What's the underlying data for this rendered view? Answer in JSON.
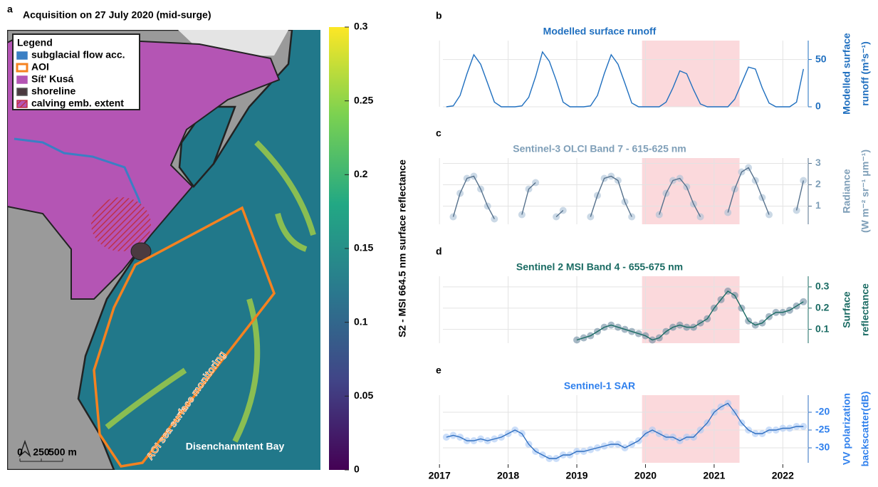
{
  "chart_data": [
    {
      "type": "map",
      "label": "a",
      "title": "Acquisition on 27 July 2020 (mid-surge)",
      "legend": {
        "title": "Legend",
        "items": [
          {
            "name": "subglacial flow acc.",
            "color": "#3a7fc4"
          },
          {
            "name": "AOI",
            "color": "#f58220"
          },
          {
            "name": "Sít' Kusá",
            "color": "#b455b4"
          },
          {
            "name": "shoreline",
            "color": "#555555"
          },
          {
            "name": "calving emb. extent",
            "color": "#c0304a"
          }
        ]
      },
      "annotations": [
        "AOI sea surface monitoring",
        "Disenchanmtent Bay"
      ],
      "scale_bar": [
        0,
        250,
        {
          "value": 500,
          "label": "500 m"
        }
      ],
      "colorbar": {
        "label": "S2 - MSI 664.5 nm surface reflectance",
        "lim": [
          0,
          0.3
        ],
        "ticks": [
          0,
          0.05,
          0.1,
          0.15,
          0.2,
          0.25,
          0.3
        ]
      }
    },
    {
      "type": "line",
      "label": "b",
      "title": "Modelled surface runoff",
      "title_color": "#1f6fbf",
      "color": "#1f6fbf",
      "ylabel": [
        "Modelled surface",
        "runoff (m³s⁻¹)"
      ],
      "x": [
        2017.1,
        2017.2,
        2017.3,
        2017.4,
        2017.5,
        2017.6,
        2017.7,
        2017.8,
        2017.9,
        2018.0,
        2018.1,
        2018.2,
        2018.3,
        2018.4,
        2018.5,
        2018.6,
        2018.7,
        2018.8,
        2018.9,
        2019.0,
        2019.1,
        2019.2,
        2019.3,
        2019.4,
        2019.5,
        2019.6,
        2019.7,
        2019.8,
        2019.9,
        2020.0,
        2020.1,
        2020.2,
        2020.3,
        2020.4,
        2020.5,
        2020.6,
        2020.7,
        2020.8,
        2020.9,
        2021.0,
        2021.1,
        2021.2,
        2021.3,
        2021.4,
        2021.5,
        2021.6,
        2021.7,
        2021.8,
        2021.9,
        2022.0,
        2022.1,
        2022.2,
        2022.3
      ],
      "values": [
        0,
        1,
        12,
        35,
        55,
        45,
        25,
        5,
        0,
        0,
        0,
        1,
        10,
        32,
        58,
        48,
        28,
        5,
        0,
        0,
        0,
        1,
        12,
        35,
        55,
        45,
        25,
        4,
        0,
        0,
        0,
        0,
        5,
        20,
        38,
        35,
        18,
        3,
        0,
        0,
        0,
        0,
        8,
        25,
        42,
        40,
        20,
        4,
        0,
        0,
        0,
        5,
        40
      ],
      "xlim": [
        2017.05,
        2022.37
      ],
      "xticks": [
        2017,
        2018,
        2019,
        2020,
        2021,
        2022
      ],
      "ylim": [
        0,
        70
      ],
      "yticks": [
        0,
        50
      ],
      "grid": true,
      "shaded_span": [
        2019.95,
        2021.37
      ],
      "shade_color": "#fbd9dc"
    },
    {
      "type": "scatter_line",
      "label": "c",
      "title": "Sentinel-3 OLCI Band 7 - 615-625 nm",
      "title_color": "#7f9fb8",
      "color": "#56718c",
      "marker_color": "#a9c0d6",
      "ylabel": [
        "Radiance",
        "(W m⁻² sr⁻¹ μm⁻¹)"
      ],
      "x": [
        2017.1,
        2017.2,
        2017.3,
        2017.4,
        2017.5,
        2017.6,
        2017.7,
        2017.8,
        2017.9,
        2018.0,
        2018.1,
        2018.2,
        2018.3,
        2018.4,
        2018.5,
        2018.6,
        2018.7,
        2018.8,
        2018.9,
        2019.0,
        2019.1,
        2019.2,
        2019.3,
        2019.4,
        2019.5,
        2019.6,
        2019.7,
        2019.8,
        2019.9,
        2020.0,
        2020.1,
        2020.2,
        2020.3,
        2020.4,
        2020.5,
        2020.6,
        2020.7,
        2020.8,
        2020.9,
        2021.0,
        2021.1,
        2021.2,
        2021.3,
        2021.4,
        2021.5,
        2021.6,
        2021.7,
        2021.8,
        2021.9,
        2022.0,
        2022.1,
        2022.2,
        2022.3
      ],
      "values": [
        null,
        0.5,
        1.6,
        2.3,
        2.4,
        1.8,
        1.0,
        0.4,
        null,
        null,
        null,
        0.6,
        1.8,
        2.1,
        null,
        null,
        0.5,
        0.8,
        null,
        null,
        null,
        0.5,
        1.5,
        2.3,
        2.4,
        2.2,
        1.2,
        0.5,
        null,
        null,
        null,
        0.6,
        1.6,
        2.2,
        2.3,
        1.9,
        1.1,
        0.5,
        null,
        null,
        null,
        0.7,
        1.8,
        2.6,
        2.8,
        2.2,
        1.4,
        0.6,
        null,
        null,
        null,
        0.8,
        2.2
      ],
      "xlim": [
        2017.05,
        2022.37
      ],
      "xticks": [
        2017,
        2018,
        2019,
        2020,
        2021,
        2022
      ],
      "ylim": [
        0.15,
        3.25
      ],
      "yticks": [
        1,
        2,
        3
      ],
      "grid": true,
      "shaded_span": [
        2019.95,
        2021.37
      ],
      "shade_color": "#fbd9dc"
    },
    {
      "type": "scatter_line",
      "label": "d",
      "title": "Sentinel 2 MSI Band 4 - 655-675 nm",
      "title_color": "#1a6b63",
      "color": "#1a6b63",
      "marker_color": "#6d8aa0",
      "ylabel": [
        "Surface",
        "reflectance"
      ],
      "x": [
        2017.1,
        2017.2,
        2017.3,
        2017.4,
        2017.5,
        2017.6,
        2017.7,
        2017.8,
        2017.9,
        2018.0,
        2018.1,
        2018.2,
        2018.3,
        2018.4,
        2018.5,
        2018.6,
        2018.7,
        2018.8,
        2018.9,
        2019.0,
        2019.1,
        2019.2,
        2019.3,
        2019.4,
        2019.5,
        2019.6,
        2019.7,
        2019.8,
        2019.9,
        2020.0,
        2020.1,
        2020.2,
        2020.3,
        2020.4,
        2020.5,
        2020.6,
        2020.7,
        2020.8,
        2020.9,
        2021.0,
        2021.1,
        2021.2,
        2021.3,
        2021.4,
        2021.5,
        2021.6,
        2021.7,
        2021.8,
        2021.9,
        2022.0,
        2022.1,
        2022.2,
        2022.3
      ],
      "values": [
        null,
        null,
        null,
        null,
        null,
        null,
        null,
        null,
        null,
        null,
        null,
        null,
        null,
        null,
        null,
        null,
        null,
        null,
        null,
        0.05,
        0.06,
        0.07,
        0.09,
        0.11,
        0.12,
        0.11,
        0.1,
        0.09,
        0.08,
        0.07,
        0.05,
        0.06,
        0.09,
        0.11,
        0.12,
        0.11,
        0.11,
        0.13,
        0.15,
        0.2,
        0.24,
        0.28,
        0.26,
        0.2,
        0.14,
        0.12,
        0.13,
        0.16,
        0.18,
        0.18,
        0.19,
        0.21,
        0.23
      ],
      "xlim": [
        2017.05,
        2022.37
      ],
      "xticks": [
        2017,
        2018,
        2019,
        2020,
        2021,
        2022
      ],
      "ylim": [
        0.035,
        0.35
      ],
      "yticks": [
        0.1,
        0.2,
        0.3
      ],
      "grid": true,
      "shaded_span": [
        2019.95,
        2021.37
      ],
      "shade_color": "#fbd9dc"
    },
    {
      "type": "scatter_line",
      "label": "e",
      "title": "Sentinel-1 SAR",
      "title_color": "#2f80ed",
      "color": "#2f6fc0",
      "marker_color": "#a8c8f5",
      "ylabel": [
        "VV polarization",
        "backscatter(dB)"
      ],
      "x": [
        2017.1,
        2017.2,
        2017.3,
        2017.4,
        2017.5,
        2017.6,
        2017.7,
        2017.8,
        2017.9,
        2018.0,
        2018.1,
        2018.2,
        2018.3,
        2018.4,
        2018.5,
        2018.6,
        2018.7,
        2018.8,
        2018.9,
        2019.0,
        2019.1,
        2019.2,
        2019.3,
        2019.4,
        2019.5,
        2019.6,
        2019.7,
        2019.8,
        2019.9,
        2020.0,
        2020.1,
        2020.2,
        2020.3,
        2020.4,
        2020.5,
        2020.6,
        2020.7,
        2020.8,
        2020.9,
        2021.0,
        2021.1,
        2021.2,
        2021.3,
        2021.4,
        2021.5,
        2021.6,
        2021.7,
        2021.8,
        2021.9,
        2022.0,
        2022.1,
        2022.2,
        2022.3
      ],
      "values": [
        -27,
        -26.5,
        -27,
        -28,
        -28,
        -27.5,
        -28,
        -27.5,
        -27,
        -26,
        -25,
        -26,
        -29,
        -31,
        -32,
        -33,
        -33,
        -32,
        -32,
        -31,
        -31,
        -30.5,
        -30,
        -29.5,
        -29,
        -29,
        -30,
        -29,
        -28,
        -26,
        -25,
        -26,
        -27,
        -27,
        -28,
        -27,
        -27,
        -25,
        -23,
        -20,
        -18.5,
        -17.5,
        -20,
        -23,
        -25,
        -26,
        -26,
        -25,
        -25,
        -24.5,
        -24.5,
        -24,
        -24
      ],
      "xlim": [
        2017.05,
        2022.37
      ],
      "xticks": [
        2017,
        2018,
        2019,
        2020,
        2021,
        2022
      ],
      "ylim": [
        -34.2,
        -15.2
      ],
      "yticks": [
        -30,
        -25,
        -20
      ],
      "grid": true,
      "shaded_span": [
        2019.95,
        2021.37
      ],
      "shade_color": "#fbd9dc"
    }
  ]
}
